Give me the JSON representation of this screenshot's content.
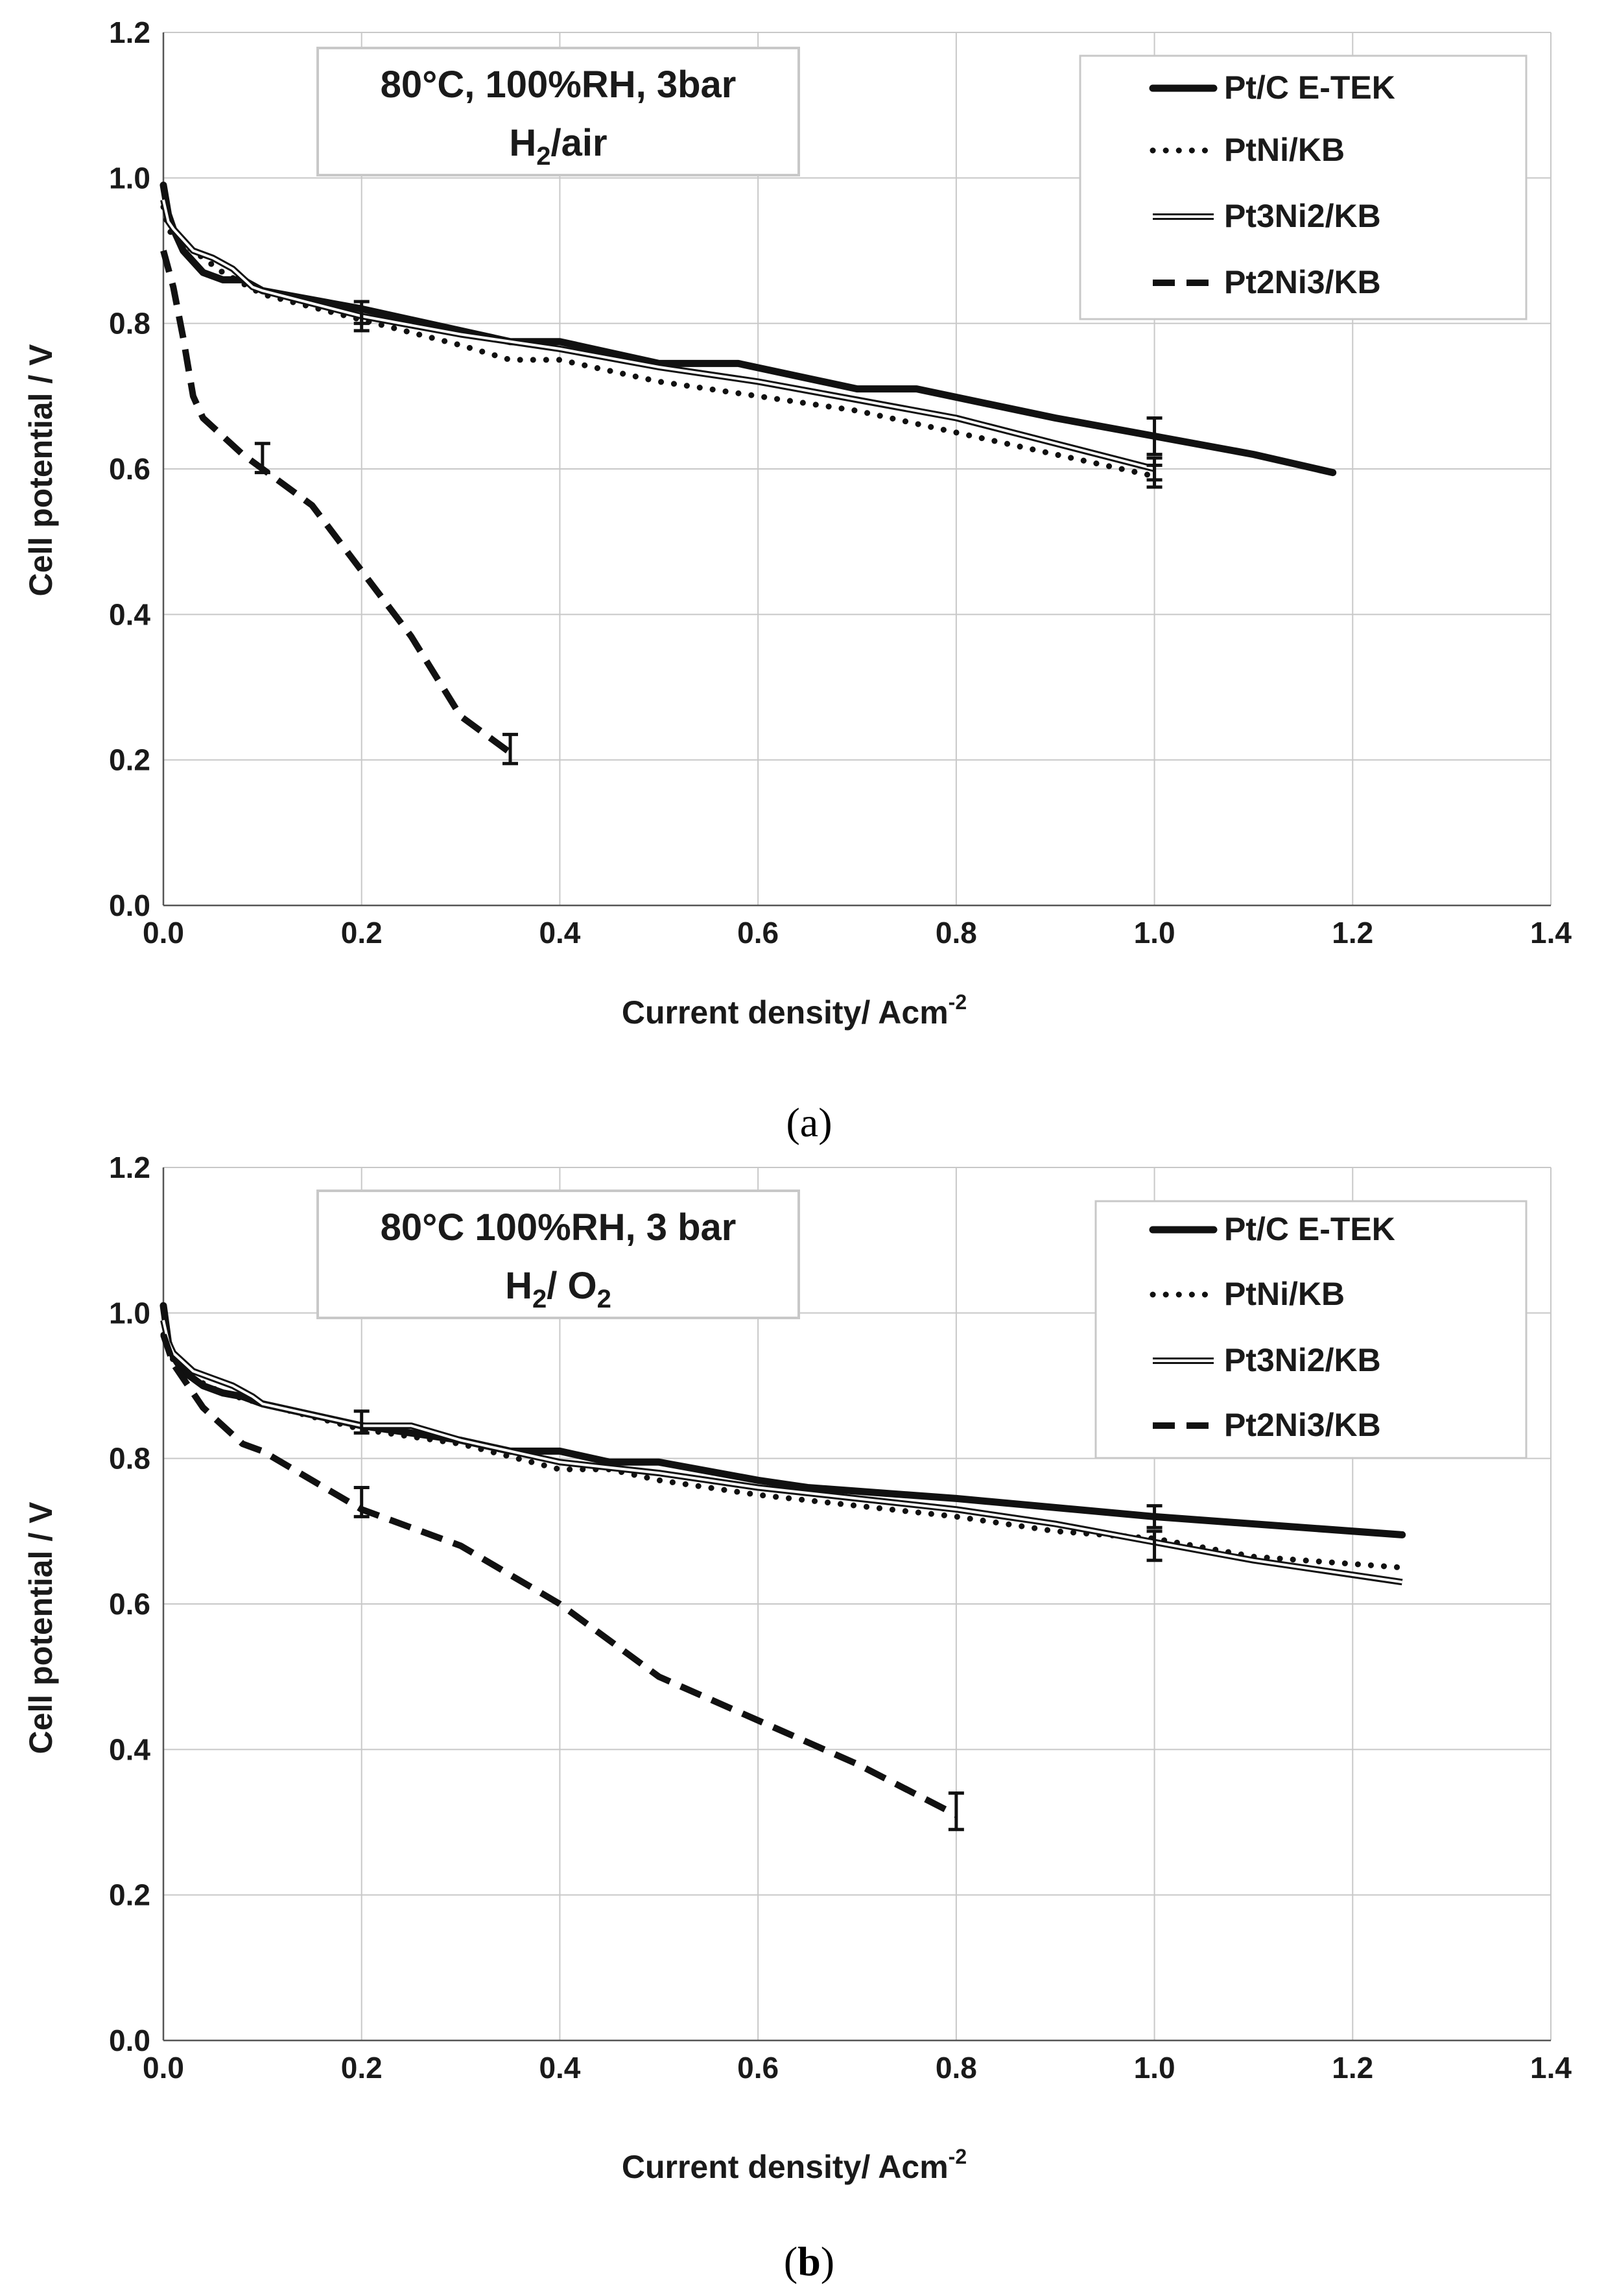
{
  "chart_data": [
    {
      "type": "line",
      "panel": "a",
      "conditions_line1": "80°C, 100%RH, 3bar",
      "conditions_line2": {
        "base": "H",
        "sub": "2",
        "rest": "/air"
      },
      "xlabel": "Current density/ Acm",
      "xlabel_sup": "-2",
      "ylabel": "Cell potential / V",
      "xlim": [
        0,
        1.4
      ],
      "ylim": [
        0,
        1.2
      ],
      "xticks": [
        0.0,
        0.2,
        0.4,
        0.6,
        0.8,
        1.0,
        1.2,
        1.4
      ],
      "yticks": [
        0.0,
        0.2,
        0.4,
        0.6,
        0.8,
        1.0,
        1.2
      ],
      "grid": true,
      "legend": "top-right",
      "caption_open": "(",
      "caption_letter": "a",
      "caption_close": ")",
      "series": [
        {
          "name": "Pt/C E-TEK",
          "style": "thick",
          "x": [
            0,
            0.005,
            0.01,
            0.02,
            0.04,
            0.06,
            0.08,
            0.1,
            0.2,
            0.3,
            0.35,
            0.4,
            0.5,
            0.58,
            0.7,
            0.76,
            0.9,
            1.0,
            1.1,
            1.18
          ],
          "y": [
            0.99,
            0.95,
            0.93,
            0.9,
            0.87,
            0.86,
            0.86,
            0.845,
            0.82,
            0.79,
            0.775,
            0.775,
            0.745,
            0.745,
            0.71,
            0.71,
            0.67,
            0.645,
            0.62,
            0.595
          ],
          "err": [
            {
              "x": 1.0,
              "y": 0.645,
              "e": 0.025
            },
            {
              "x": 0.2,
              "y": 0.815,
              "e": 0.015
            }
          ]
        },
        {
          "name": "PtNi/KB",
          "style": "dotted",
          "x": [
            0,
            0.005,
            0.01,
            0.03,
            0.06,
            0.1,
            0.2,
            0.3,
            0.35,
            0.4,
            0.5,
            0.6,
            0.7,
            0.8,
            0.9,
            1.0
          ],
          "y": [
            0.96,
            0.93,
            0.92,
            0.9,
            0.87,
            0.84,
            0.805,
            0.77,
            0.75,
            0.75,
            0.72,
            0.7,
            0.68,
            0.65,
            0.62,
            0.59
          ],
          "err": [
            {
              "x": 1.0,
              "y": 0.59,
              "e": 0.015
            },
            {
              "x": 0.2,
              "y": 0.805,
              "e": 0.015
            }
          ]
        },
        {
          "name": "Pt3Ni2/KB",
          "style": "double",
          "x": [
            0,
            0.005,
            0.01,
            0.03,
            0.05,
            0.07,
            0.09,
            0.1,
            0.2,
            0.3,
            0.4,
            0.5,
            0.6,
            0.66,
            0.8,
            0.9,
            1.0
          ],
          "y": [
            0.97,
            0.94,
            0.93,
            0.9,
            0.89,
            0.875,
            0.85,
            0.845,
            0.81,
            0.785,
            0.765,
            0.74,
            0.72,
            0.705,
            0.67,
            0.635,
            0.6
          ],
          "err": [
            {
              "x": 1.0,
              "y": 0.6,
              "e": 0.015
            }
          ]
        },
        {
          "name": "Pt2Ni3/KB",
          "style": "dashed",
          "x": [
            0,
            0.01,
            0.02,
            0.03,
            0.04,
            0.06,
            0.08,
            0.1,
            0.15,
            0.2,
            0.25,
            0.3,
            0.35
          ],
          "y": [
            0.9,
            0.85,
            0.78,
            0.7,
            0.67,
            0.645,
            0.62,
            0.6,
            0.55,
            0.46,
            0.37,
            0.26,
            0.21
          ],
          "err": [
            {
              "x": 0.1,
              "y": 0.615,
              "e": 0.02
            },
            {
              "x": 0.35,
              "y": 0.215,
              "e": 0.02
            }
          ]
        }
      ]
    },
    {
      "type": "line",
      "panel": "b",
      "conditions_line1": "80°C  100%RH, 3 bar",
      "conditions_line2": {
        "base": "H",
        "sub": "2",
        "rest": "/ O",
        "sub2": "2"
      },
      "xlabel": "Current density/ Acm",
      "xlabel_sup": "-2",
      "ylabel": "Cell potential / V",
      "xlim": [
        0,
        1.4
      ],
      "ylim": [
        0,
        1.2
      ],
      "xticks": [
        0.0,
        0.2,
        0.4,
        0.6,
        0.8,
        1.0,
        1.2,
        1.4
      ],
      "yticks": [
        0.0,
        0.2,
        0.4,
        0.6,
        0.8,
        1.0,
        1.2
      ],
      "grid": true,
      "legend": "top-right",
      "caption_open": "(",
      "caption_letter": "b",
      "caption_close": ")",
      "series": [
        {
          "name": "Pt/C E-TEK",
          "style": "thick",
          "x": [
            0,
            0.005,
            0.01,
            0.02,
            0.04,
            0.06,
            0.08,
            0.1,
            0.2,
            0.3,
            0.35,
            0.4,
            0.45,
            0.5,
            0.6,
            0.65,
            0.8,
            1.0,
            1.25
          ],
          "y": [
            1.01,
            0.96,
            0.94,
            0.92,
            0.9,
            0.89,
            0.885,
            0.875,
            0.845,
            0.825,
            0.81,
            0.81,
            0.795,
            0.795,
            0.77,
            0.76,
            0.745,
            0.72,
            0.695
          ],
          "err": [
            {
              "x": 1.0,
              "y": 0.72,
              "e": 0.015
            },
            {
              "x": 0.2,
              "y": 0.85,
              "e": 0.015
            }
          ]
        },
        {
          "name": "PtNi/KB",
          "style": "dotted",
          "x": [
            0,
            0.005,
            0.01,
            0.03,
            0.06,
            0.1,
            0.2,
            0.3,
            0.4,
            0.45,
            0.5,
            0.6,
            0.7,
            0.8,
            0.9,
            1.0,
            1.1,
            1.25
          ],
          "y": [
            0.97,
            0.95,
            0.935,
            0.91,
            0.89,
            0.875,
            0.84,
            0.82,
            0.785,
            0.785,
            0.77,
            0.75,
            0.735,
            0.72,
            0.7,
            0.69,
            0.665,
            0.65
          ],
          "err": [
            {
              "x": 1.0,
              "y": 0.68,
              "e": 0.02
            }
          ]
        },
        {
          "name": "Pt3Ni2/KB",
          "style": "double",
          "x": [
            0,
            0.005,
            0.01,
            0.03,
            0.05,
            0.07,
            0.09,
            0.1,
            0.2,
            0.25,
            0.3,
            0.4,
            0.5,
            0.6,
            0.7,
            0.8,
            0.9,
            1.0,
            1.1,
            1.25
          ],
          "y": [
            0.99,
            0.96,
            0.945,
            0.92,
            0.91,
            0.9,
            0.885,
            0.875,
            0.845,
            0.845,
            0.825,
            0.795,
            0.78,
            0.76,
            0.745,
            0.73,
            0.71,
            0.685,
            0.66,
            0.63
          ],
          "err": []
        },
        {
          "name": "Pt2Ni3/KB",
          "style": "dashed",
          "x": [
            0,
            0.01,
            0.02,
            0.04,
            0.06,
            0.08,
            0.1,
            0.15,
            0.2,
            0.3,
            0.4,
            0.5,
            0.6,
            0.7,
            0.8
          ],
          "y": [
            0.97,
            0.93,
            0.91,
            0.87,
            0.845,
            0.82,
            0.81,
            0.77,
            0.73,
            0.68,
            0.6,
            0.5,
            0.44,
            0.38,
            0.31
          ],
          "err": [
            {
              "x": 0.2,
              "y": 0.74,
              "e": 0.02
            },
            {
              "x": 0.8,
              "y": 0.315,
              "e": 0.025
            }
          ]
        }
      ]
    }
  ]
}
